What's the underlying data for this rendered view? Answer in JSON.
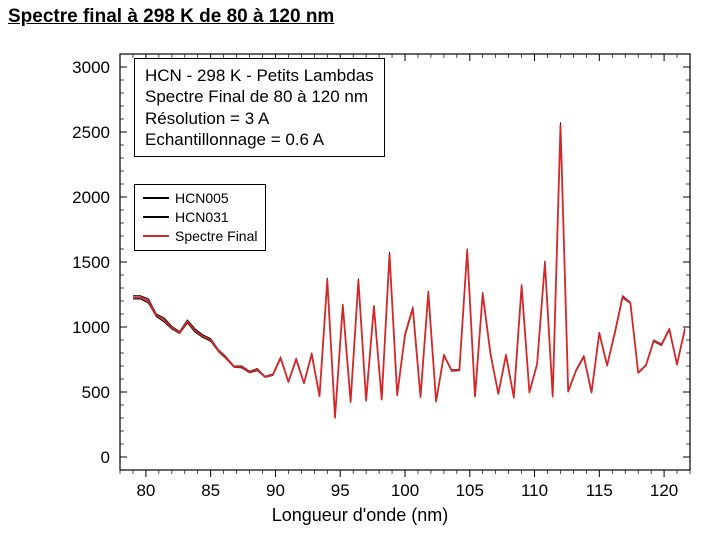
{
  "title": "Spectre final à 298 K de 80 à 120 nm",
  "chart": {
    "type": "line",
    "xlim": [
      78,
      122
    ],
    "ylim": [
      -100,
      3100
    ],
    "xticks": [
      80,
      85,
      90,
      95,
      100,
      105,
      110,
      115,
      120
    ],
    "yticks": [
      0,
      500,
      1000,
      1500,
      2000,
      2500,
      3000
    ],
    "xlabel": "Longueur d'onde (nm)",
    "ylabel": "",
    "background_color": "#ffffff",
    "axis_color": "#000000",
    "tick_fontsize": 17,
    "label_fontsize": 18,
    "annotation": {
      "lines": [
        "HCN - 298 K - Petits Lambdas",
        "Spectre Final de 80 à 120 nm",
        "Résolution = 3 A",
        "Echantillonnage = 0.6 A"
      ],
      "fontsize": 17
    },
    "legend": {
      "entries": [
        {
          "label": "HCN005",
          "color": "#000000"
        },
        {
          "label": "HCN031",
          "color": "#000000"
        },
        {
          "label": "Spectre Final",
          "color": "#d62728"
        }
      ],
      "fontsize": 14
    },
    "series": [
      {
        "name": "HCN005",
        "color": "#000000",
        "line_width": 1,
        "x": [
          79,
          79.6,
          80.2,
          80.8,
          81.4,
          82,
          82.6,
          83.2,
          83.8,
          84.4,
          85,
          85.6,
          86.2,
          86.8,
          87.4,
          88,
          88.6,
          89.2,
          89.8,
          90.4,
          91,
          91.6,
          92.2,
          92.8,
          93.4,
          94,
          94.6,
          95.2,
          95.8,
          96.4,
          97,
          97.6,
          98.2,
          98.8,
          99.4,
          100,
          100.6,
          101.2,
          101.8,
          102.4,
          103,
          103.6,
          104.2,
          104.8,
          105.4,
          106,
          106.6,
          107.2,
          107.8,
          108.4,
          109,
          109.6,
          110.2,
          110.8,
          111.4,
          112,
          112.6,
          113.2,
          113.8,
          114.4,
          115,
          115.6,
          116.2,
          116.8,
          117.4,
          118,
          118.6,
          119.2,
          119.8,
          120.4,
          121,
          121.6
        ],
        "y": [
          1240,
          1240,
          1215,
          1100,
          1070,
          1005,
          965,
          1055,
          985,
          940,
          910,
          825,
          770,
          700,
          700,
          660,
          680,
          620,
          640,
          770,
          580,
          760,
          570,
          800,
          470,
          1375,
          300,
          1175,
          430,
          1370,
          440,
          1165,
          445,
          1575,
          480,
          950,
          1155,
          465,
          1275,
          430,
          790,
          670,
          675,
          1600,
          470,
          1265,
          800,
          490,
          790,
          460,
          1325,
          500,
          720,
          1505,
          470,
          2570,
          510,
          670,
          780,
          500,
          960,
          710,
          965,
          1240,
          1190,
          650,
          710,
          900,
          870,
          990,
          715,
          990
        ]
      },
      {
        "name": "HCN031",
        "color": "#000000",
        "line_width": 1,
        "x": [
          79,
          79.6,
          80.2,
          80.8,
          81.4,
          82,
          82.6,
          83.2,
          83.8,
          84.4,
          85,
          85.6,
          86.2,
          86.8,
          87.4,
          88,
          88.6,
          89.2,
          89.8,
          90.4,
          91,
          91.6,
          92.2,
          92.8,
          93.4,
          94,
          94.6,
          95.2,
          95.8,
          96.4,
          97,
          97.6,
          98.2,
          98.8,
          99.4,
          100,
          100.6,
          101.2,
          101.8,
          102.4,
          103,
          103.6,
          104.2,
          104.8,
          105.4,
          106,
          106.6,
          107.2,
          107.8,
          108.4,
          109,
          109.6,
          110.2,
          110.8,
          111.4,
          112,
          112.6,
          113.2,
          113.8,
          114.4,
          115,
          115.6,
          116.2,
          116.8,
          117.4,
          118,
          118.6,
          119.2,
          119.8,
          120.4,
          121,
          121.6
        ],
        "y": [
          1215,
          1215,
          1185,
          1080,
          1040,
          985,
          950,
          1030,
          960,
          920,
          890,
          810,
          755,
          690,
          685,
          648,
          665,
          612,
          628,
          755,
          575,
          745,
          565,
          785,
          465,
          1345,
          310,
          1155,
          420,
          1345,
          430,
          1150,
          440,
          1545,
          473,
          930,
          1135,
          460,
          1255,
          425,
          778,
          660,
          665,
          1575,
          463,
          1245,
          785,
          483,
          778,
          455,
          1305,
          495,
          710,
          1483,
          463,
          2535,
          500,
          660,
          768,
          494,
          948,
          700,
          950,
          1225,
          1180,
          645,
          702,
          888,
          858,
          978,
          708,
          975
        ]
      },
      {
        "name": "Spectre Final",
        "color": "#d62728",
        "line_width": 1.8,
        "x": [
          79,
          79.6,
          80.2,
          80.8,
          81.4,
          82,
          82.6,
          83.2,
          83.8,
          84.4,
          85,
          85.6,
          86.2,
          86.8,
          87.4,
          88,
          88.6,
          89.2,
          89.8,
          90.4,
          91,
          91.6,
          92.2,
          92.8,
          93.4,
          94,
          94.6,
          95.2,
          95.8,
          96.4,
          97,
          97.6,
          98.2,
          98.8,
          99.4,
          100,
          100.6,
          101.2,
          101.8,
          102.4,
          103,
          103.6,
          104.2,
          104.8,
          105.4,
          106,
          106.6,
          107.2,
          107.8,
          108.4,
          109,
          109.6,
          110.2,
          110.8,
          111.4,
          112,
          112.6,
          113.2,
          113.8,
          114.4,
          115,
          115.6,
          116.2,
          116.8,
          117.4,
          118,
          118.6,
          119.2,
          119.8,
          120.4,
          121,
          121.6
        ],
        "y": [
          1227,
          1227,
          1200,
          1090,
          1055,
          995,
          958,
          1042,
          972,
          930,
          900,
          817,
          762,
          695,
          692,
          654,
          672,
          616,
          634,
          762,
          578,
          752,
          568,
          792,
          468,
          1360,
          305,
          1165,
          425,
          1358,
          435,
          1158,
          443,
          1560,
          477,
          940,
          1145,
          462,
          1265,
          428,
          784,
          665,
          670,
          1588,
          467,
          1255,
          792,
          487,
          784,
          458,
          1315,
          498,
          715,
          1494,
          467,
          2553,
          505,
          665,
          774,
          497,
          954,
          705,
          958,
          1232,
          1185,
          648,
          706,
          894,
          864,
          984,
          712,
          982
        ]
      }
    ]
  }
}
